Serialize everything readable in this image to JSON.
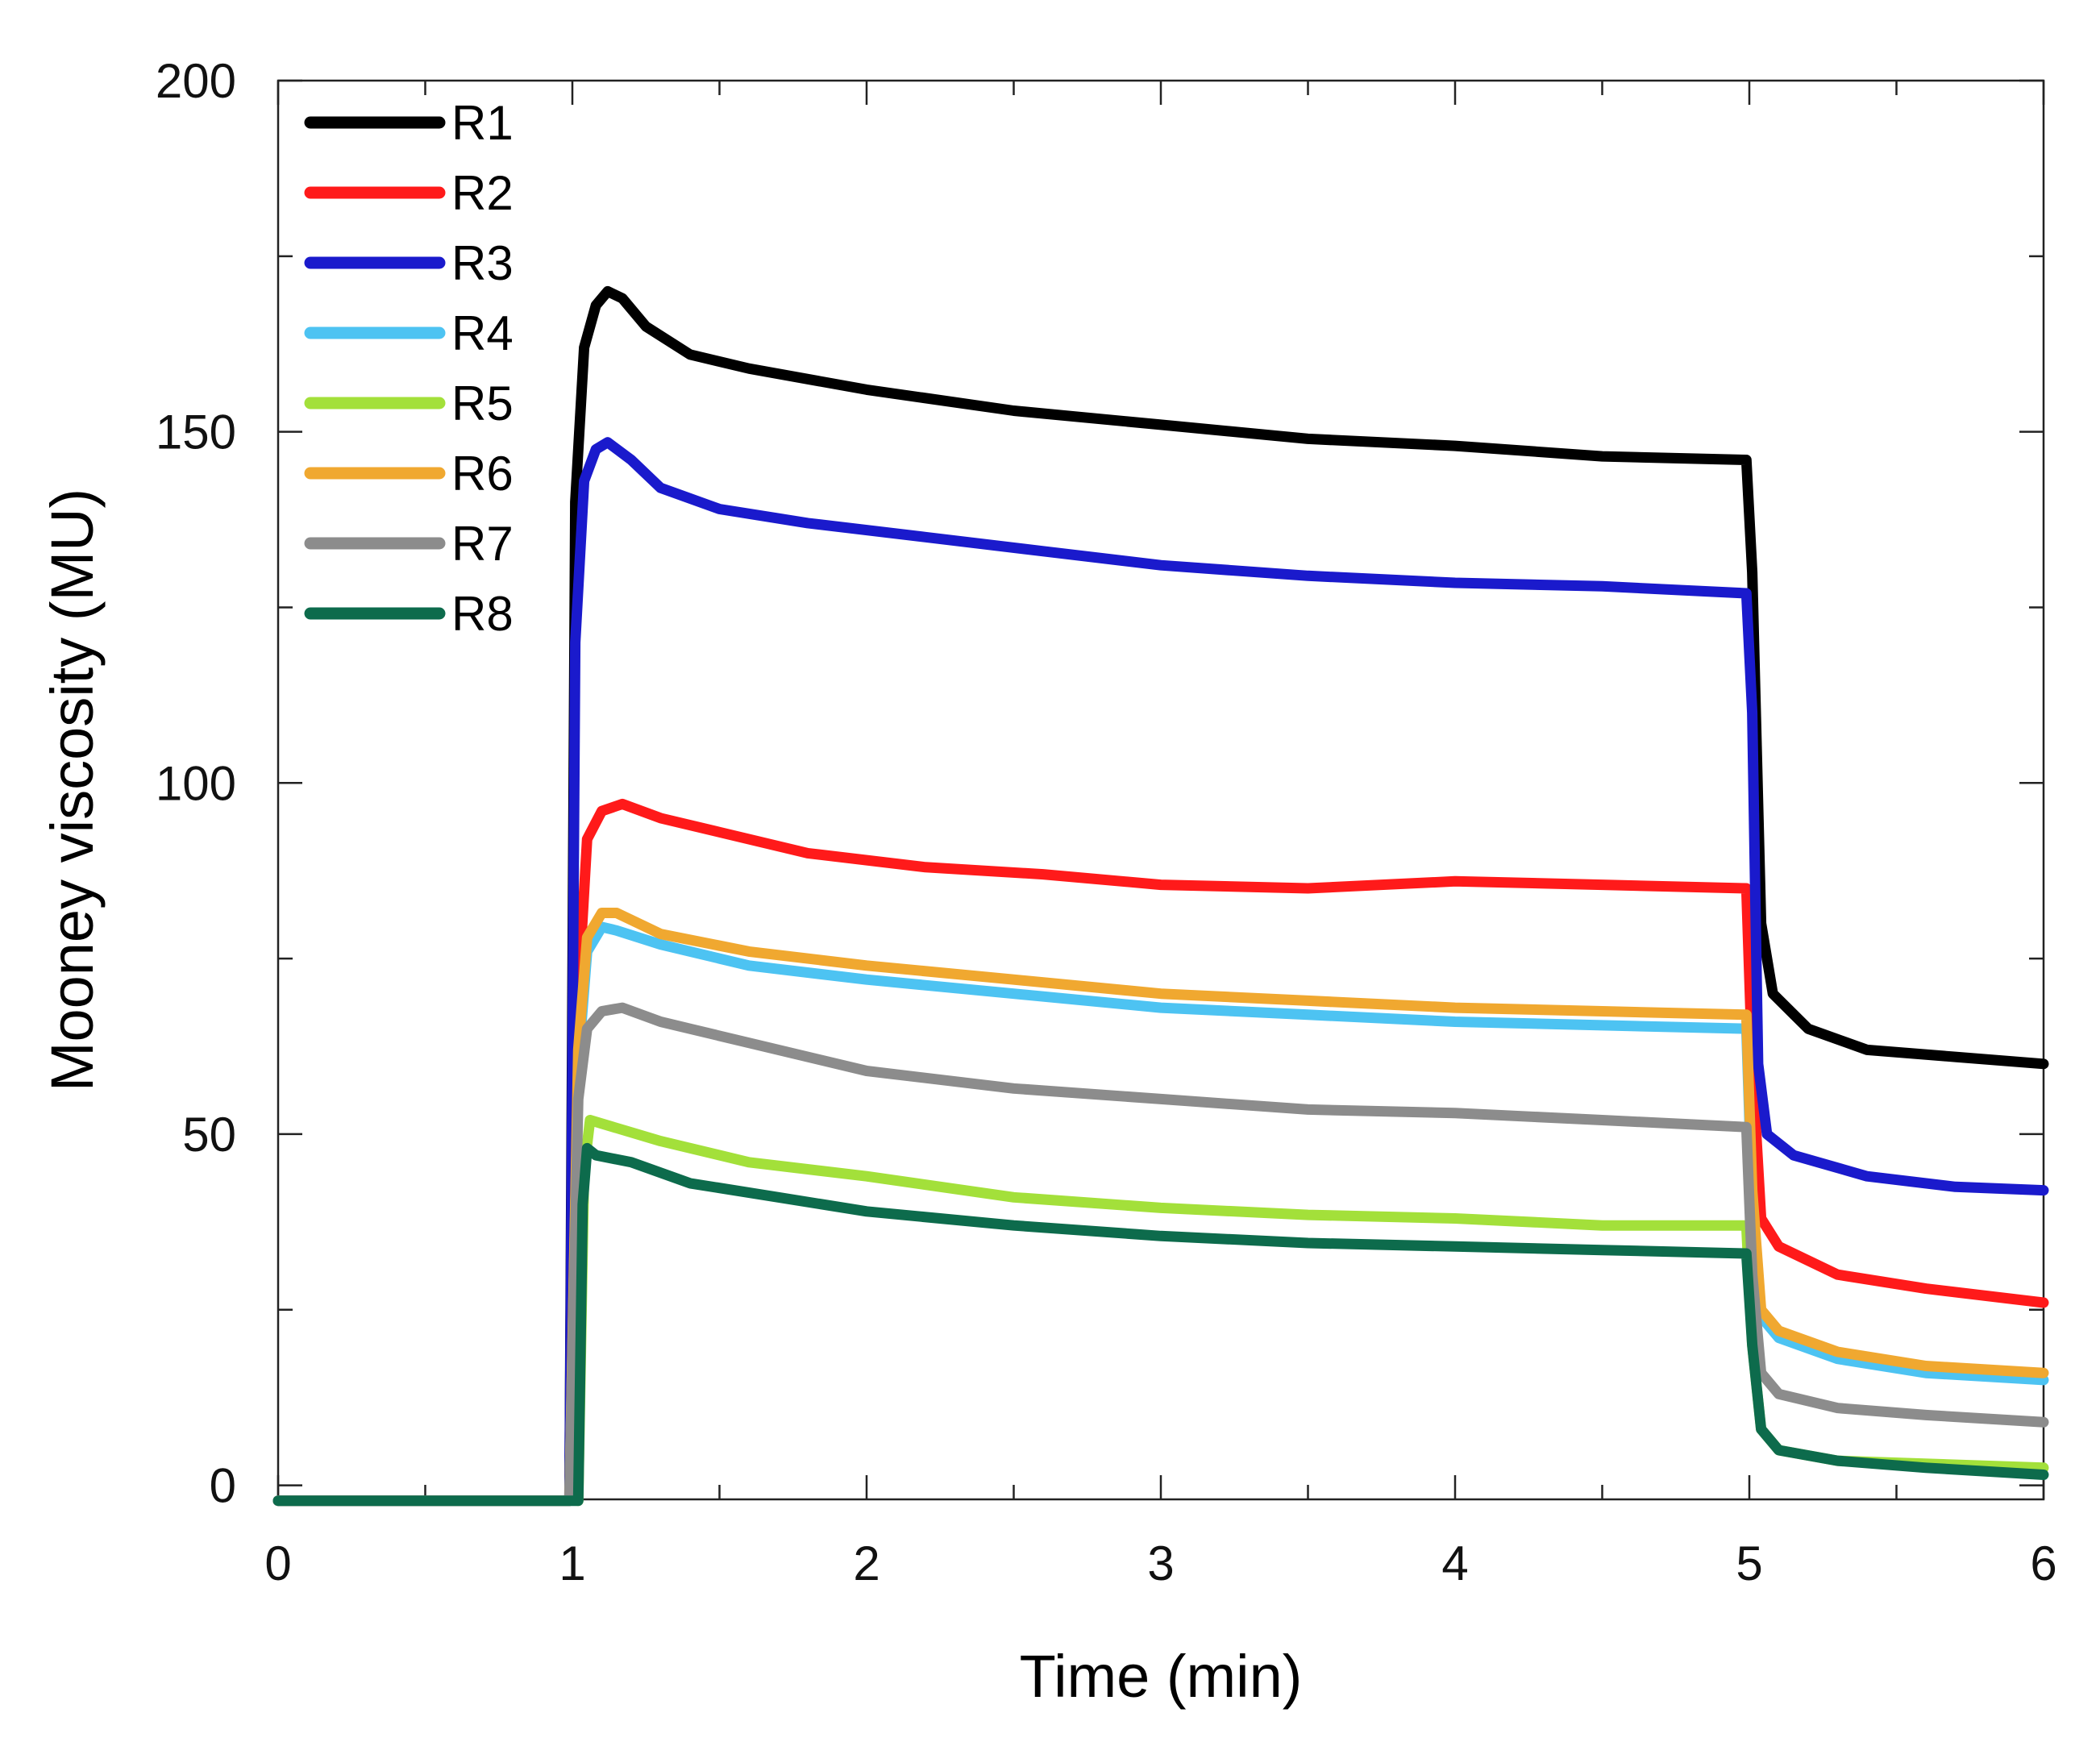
{
  "chart_data": {
    "type": "line",
    "title": "",
    "xlabel": "Time (min)",
    "ylabel": "Mooney viscosity (MU)",
    "xlim": [
      0,
      6
    ],
    "ylim": [
      -2,
      200
    ],
    "xticks": [
      0,
      1,
      2,
      3,
      4,
      5,
      6
    ],
    "xtick_labels": [
      "0",
      "1",
      "2",
      "3",
      "4",
      "5",
      "6"
    ],
    "yticks": [
      0,
      50,
      100,
      150,
      200
    ],
    "ytick_labels": [
      "0",
      "50",
      "100",
      "150",
      "200"
    ],
    "grid": false,
    "legend_position": "top-left",
    "series": [
      {
        "name": "R1",
        "color": "#000000",
        "points": [
          [
            0,
            -2.2
          ],
          [
            0.99,
            -2.2
          ],
          [
            1.01,
            140
          ],
          [
            1.04,
            162
          ],
          [
            1.08,
            168
          ],
          [
            1.12,
            170
          ],
          [
            1.17,
            169
          ],
          [
            1.25,
            165
          ],
          [
            1.4,
            161
          ],
          [
            1.6,
            159
          ],
          [
            2.0,
            156
          ],
          [
            2.5,
            153
          ],
          [
            3.0,
            151
          ],
          [
            3.5,
            149
          ],
          [
            4.0,
            148
          ],
          [
            4.5,
            146.5
          ],
          [
            4.99,
            146
          ],
          [
            5.01,
            130
          ],
          [
            5.04,
            80
          ],
          [
            5.08,
            70
          ],
          [
            5.2,
            65
          ],
          [
            5.4,
            62
          ],
          [
            5.7,
            61
          ],
          [
            6.0,
            60
          ]
        ]
      },
      {
        "name": "R2",
        "color": "#ff1a1a",
        "points": [
          [
            0,
            -2.2
          ],
          [
            0.99,
            -2.2
          ],
          [
            1.02,
            70
          ],
          [
            1.05,
            92
          ],
          [
            1.1,
            96
          ],
          [
            1.17,
            97
          ],
          [
            1.3,
            95
          ],
          [
            1.5,
            93
          ],
          [
            1.8,
            90
          ],
          [
            2.2,
            88
          ],
          [
            2.6,
            87
          ],
          [
            3.0,
            85.5
          ],
          [
            3.5,
            85
          ],
          [
            4.0,
            86
          ],
          [
            4.5,
            85.5
          ],
          [
            4.99,
            85
          ],
          [
            5.01,
            60
          ],
          [
            5.04,
            38
          ],
          [
            5.1,
            34
          ],
          [
            5.3,
            30
          ],
          [
            5.6,
            28
          ],
          [
            6.0,
            26
          ]
        ]
      },
      {
        "name": "R3",
        "color": "#1a1acc",
        "points": [
          [
            0,
            -2.2
          ],
          [
            0.99,
            -2.2
          ],
          [
            1.01,
            120
          ],
          [
            1.04,
            143
          ],
          [
            1.08,
            147.5
          ],
          [
            1.12,
            148.5
          ],
          [
            1.2,
            146
          ],
          [
            1.3,
            142
          ],
          [
            1.5,
            139
          ],
          [
            1.8,
            137
          ],
          [
            2.2,
            135
          ],
          [
            2.6,
            133
          ],
          [
            3.0,
            131
          ],
          [
            3.5,
            129.5
          ],
          [
            4.0,
            128.5
          ],
          [
            4.5,
            128
          ],
          [
            4.99,
            127
          ],
          [
            5.01,
            110
          ],
          [
            5.03,
            60
          ],
          [
            5.06,
            50
          ],
          [
            5.15,
            47
          ],
          [
            5.4,
            44
          ],
          [
            5.7,
            42.5
          ],
          [
            6.0,
            42
          ]
        ]
      },
      {
        "name": "R4",
        "color": "#4dc3f2",
        "points": [
          [
            0,
            -2.2
          ],
          [
            0.99,
            -2.2
          ],
          [
            1.02,
            60
          ],
          [
            1.05,
            76
          ],
          [
            1.1,
            79.5
          ],
          [
            1.15,
            79
          ],
          [
            1.3,
            77
          ],
          [
            1.6,
            74
          ],
          [
            2.0,
            72
          ],
          [
            2.5,
            70
          ],
          [
            3.0,
            68
          ],
          [
            3.5,
            67
          ],
          [
            4.0,
            66
          ],
          [
            4.5,
            65.5
          ],
          [
            4.99,
            65
          ],
          [
            5.01,
            40
          ],
          [
            5.04,
            24
          ],
          [
            5.1,
            21
          ],
          [
            5.3,
            18
          ],
          [
            5.6,
            16
          ],
          [
            6.0,
            15
          ]
        ]
      },
      {
        "name": "R5",
        "color": "#a3e03a",
        "points": [
          [
            1.02,
            -2.2
          ],
          [
            1.04,
            45
          ],
          [
            1.06,
            52
          ],
          [
            1.1,
            51.5
          ],
          [
            1.3,
            49
          ],
          [
            1.6,
            46
          ],
          [
            2.0,
            44
          ],
          [
            2.5,
            41
          ],
          [
            3.0,
            39.5
          ],
          [
            3.5,
            38.5
          ],
          [
            4.0,
            38
          ],
          [
            4.5,
            37
          ],
          [
            4.99,
            37
          ],
          [
            5.01,
            20
          ],
          [
            5.04,
            8
          ],
          [
            5.1,
            5
          ],
          [
            5.3,
            3.5
          ],
          [
            6.0,
            2.5
          ]
        ]
      },
      {
        "name": "R6",
        "color": "#f0a830",
        "points": [
          [
            0,
            -2.2
          ],
          [
            0.99,
            -2.2
          ],
          [
            1.02,
            62
          ],
          [
            1.05,
            78
          ],
          [
            1.1,
            81.5
          ],
          [
            1.15,
            81.5
          ],
          [
            1.3,
            78.5
          ],
          [
            1.6,
            76
          ],
          [
            2.0,
            74
          ],
          [
            2.5,
            72
          ],
          [
            3.0,
            70
          ],
          [
            3.5,
            69
          ],
          [
            4.0,
            68
          ],
          [
            4.5,
            67.5
          ],
          [
            4.99,
            67
          ],
          [
            5.01,
            42
          ],
          [
            5.04,
            25
          ],
          [
            5.1,
            22
          ],
          [
            5.3,
            19
          ],
          [
            5.6,
            17
          ],
          [
            6.0,
            16
          ]
        ]
      },
      {
        "name": "R7",
        "color": "#8c8c8c",
        "points": [
          [
            0,
            -2.2
          ],
          [
            0.99,
            -2.2
          ],
          [
            1.02,
            55
          ],
          [
            1.05,
            65
          ],
          [
            1.1,
            67.5
          ],
          [
            1.17,
            68
          ],
          [
            1.3,
            66
          ],
          [
            1.6,
            63
          ],
          [
            2.0,
            59
          ],
          [
            2.5,
            56.5
          ],
          [
            3.0,
            55
          ],
          [
            3.5,
            53.5
          ],
          [
            4.0,
            53
          ],
          [
            4.5,
            52
          ],
          [
            4.99,
            51
          ],
          [
            5.01,
            30
          ],
          [
            5.04,
            16
          ],
          [
            5.1,
            13
          ],
          [
            5.3,
            11
          ],
          [
            5.6,
            10
          ],
          [
            6.0,
            9
          ]
        ]
      },
      {
        "name": "R8",
        "color": "#0d6b4c",
        "points": [
          [
            0,
            -2.2
          ],
          [
            1.02,
            -2.2
          ],
          [
            1.035,
            40
          ],
          [
            1.05,
            48
          ],
          [
            1.08,
            47
          ],
          [
            1.2,
            46
          ],
          [
            1.4,
            43
          ],
          [
            1.7,
            41
          ],
          [
            2.0,
            39
          ],
          [
            2.5,
            37
          ],
          [
            3.0,
            35.5
          ],
          [
            3.5,
            34.5
          ],
          [
            4.0,
            34
          ],
          [
            4.5,
            33.5
          ],
          [
            4.99,
            33
          ],
          [
            5.01,
            20
          ],
          [
            5.04,
            8
          ],
          [
            5.1,
            5
          ],
          [
            5.3,
            3.5
          ],
          [
            5.6,
            2.5
          ],
          [
            6.0,
            1.5
          ]
        ]
      }
    ]
  }
}
